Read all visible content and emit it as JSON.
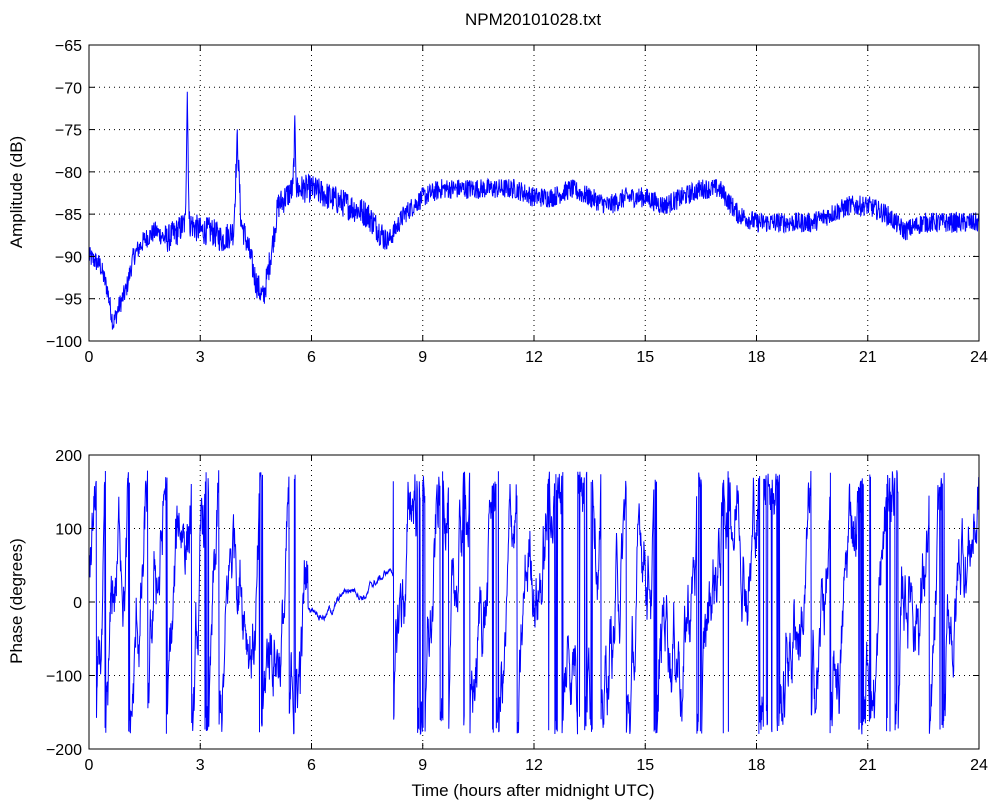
{
  "title": "NPM20101028.txt",
  "colors": {
    "line": "#0000ff",
    "axis": "#000000",
    "grid": "#000000",
    "background": "#ffffff"
  },
  "chart_data": [
    {
      "type": "line",
      "title": "NPM20101028.txt",
      "xlabel": "",
      "ylabel": "Amplitude (dB)",
      "xlim": [
        0,
        24
      ],
      "ylim": [
        -100,
        -65
      ],
      "xticks": [
        0,
        3,
        6,
        9,
        12,
        15,
        18,
        21,
        24
      ],
      "xtick_labels": [
        "0",
        "3",
        "6",
        "9",
        "12",
        "15",
        "18",
        "21",
        "24"
      ],
      "yticks": [
        -100,
        -95,
        -90,
        -85,
        -80,
        -75,
        -70,
        -65
      ],
      "ytick_labels": [
        "−100",
        "−95",
        "−90",
        "−85",
        "−80",
        "−75",
        "−70",
        "−65"
      ],
      "grid": true,
      "x": [
        0,
        0.3,
        0.5,
        0.65,
        0.8,
        1.0,
        1.2,
        1.5,
        1.8,
        2.1,
        2.4,
        2.6,
        2.65,
        2.7,
        3.0,
        3.3,
        3.6,
        3.9,
        4.0,
        4.1,
        4.3,
        4.5,
        4.7,
        4.9,
        5.1,
        5.3,
        5.5,
        5.55,
        5.6,
        6.0,
        6.5,
        7.0,
        7.5,
        8.0,
        8.1,
        8.5,
        9.0,
        9.5,
        10.0,
        10.5,
        11.0,
        11.5,
        12.0,
        12.5,
        13.0,
        13.5,
        14.0,
        14.5,
        15.0,
        15.5,
        16.0,
        16.5,
        17.0,
        17.5,
        18.0,
        18.5,
        19.0,
        19.5,
        20.0,
        20.5,
        21.0,
        21.5,
        22.0,
        22.5,
        23.0,
        23.5,
        24.0
      ],
      "y": [
        -90,
        -91,
        -94,
        -98,
        -96,
        -94,
        -90,
        -88,
        -87,
        -88,
        -87,
        -86,
        -70,
        -86,
        -87,
        -87,
        -88,
        -87,
        -76,
        -86,
        -89,
        -93,
        -95,
        -90,
        -84,
        -83,
        -82,
        -75,
        -82,
        -82,
        -83,
        -84,
        -85,
        -88,
        -88,
        -85,
        -83,
        -82,
        -82,
        -82,
        -82,
        -82,
        -83,
        -83,
        -82,
        -83,
        -84,
        -83,
        -83,
        -84,
        -83,
        -82,
        -82,
        -85,
        -86,
        -86,
        -86,
        -86,
        -85,
        -84,
        -84,
        -85,
        -87,
        -86,
        -86,
        -86,
        -86
      ],
      "noise": 1.2
    },
    {
      "type": "line",
      "title": "",
      "xlabel": "Time (hours after midnight UTC)",
      "ylabel": "Phase (degrees)",
      "xlim": [
        0,
        24
      ],
      "ylim": [
        -200,
        200
      ],
      "xticks": [
        0,
        3,
        6,
        9,
        12,
        15,
        18,
        21,
        24
      ],
      "xtick_labels": [
        "0",
        "3",
        "6",
        "9",
        "12",
        "15",
        "18",
        "21",
        "24"
      ],
      "yticks": [
        -200,
        -100,
        0,
        100,
        200
      ],
      "ytick_labels": [
        "−200",
        "−100",
        "0",
        "100",
        "200"
      ],
      "grid": true,
      "range": [
        -180,
        180
      ],
      "note": "phase wraps rapidly between −180 and 180; quieter interval near 6–8 h"
    }
  ]
}
